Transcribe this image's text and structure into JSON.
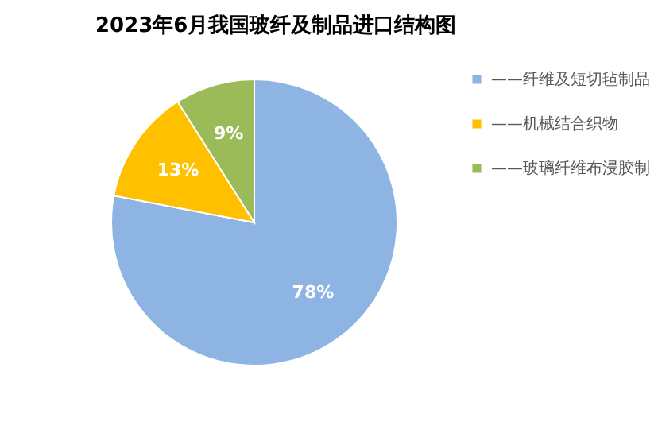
{
  "chart_data": {
    "type": "pie",
    "title": "2023年6月我国玻纤及制品进口结构图",
    "categories": [
      "——纤维及短切毡制品",
      "——机械结合织物",
      "——玻璃纤维布浸胶制"
    ],
    "values": [
      78,
      13,
      9
    ],
    "colors": [
      "#8eb4e3",
      "#ffc000",
      "#9bbb59"
    ],
    "value_labels": [
      "78%",
      "13%",
      "9%"
    ],
    "legend": "right"
  }
}
